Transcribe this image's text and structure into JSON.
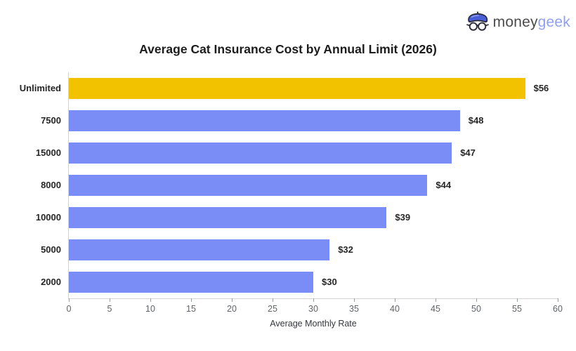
{
  "logo": {
    "text_primary": "money",
    "text_secondary": "geek",
    "icon": "beret-and-glasses-icon",
    "colors": {
      "beret": "#4a5fd6",
      "beret_outline": "#2b2b3a",
      "text_primary": "#4b4b4b",
      "text_secondary": "#8fa0f0"
    }
  },
  "title": "Average Cat Insurance Cost by Annual Limit (2026)",
  "chart_data": {
    "type": "bar",
    "orientation": "horizontal",
    "title": "Average Cat Insurance Cost by Annual Limit (2026)",
    "categories": [
      "Unlimited",
      "7500",
      "15000",
      "8000",
      "10000",
      "5000",
      "2000"
    ],
    "values": [
      56,
      48,
      47,
      44,
      39,
      32,
      30
    ],
    "value_labels": [
      "$56",
      "$48",
      "$47",
      "$44",
      "$39",
      "$32",
      "$30"
    ],
    "xlabel": "Average Monthly Rate",
    "ylabel": "",
    "xlim": [
      0,
      60
    ],
    "x_ticks": [
      0,
      5,
      10,
      15,
      20,
      25,
      30,
      35,
      40,
      45,
      50,
      55,
      60
    ],
    "grid": false,
    "legend": false,
    "highlight_index": 0,
    "bar_color_highlight": "#f2c100",
    "bar_color_default": "#7a8cf5",
    "axis_line_color_y": "#ccd3ee",
    "axis_line_color_x": "#d4d4d4"
  }
}
